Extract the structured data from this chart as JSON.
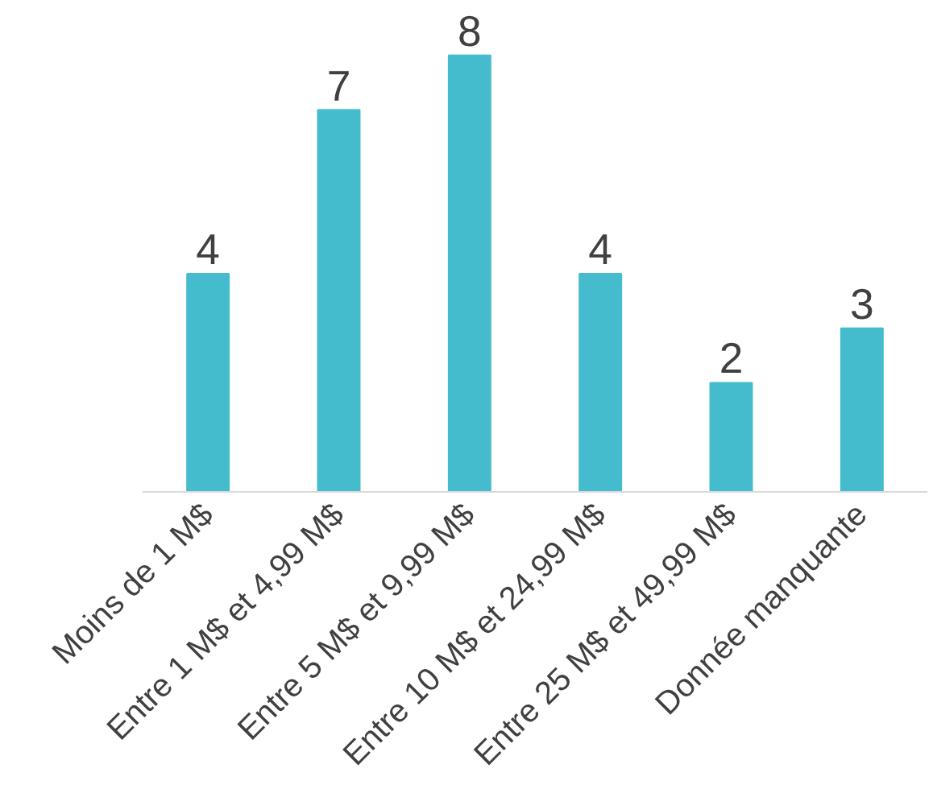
{
  "chart_data": {
    "type": "bar",
    "categories": [
      "Moins de 1 M$",
      "Entre 1 M$ et 4,99 M$",
      "Entre 5 M$ et 9,99 M$",
      "Entre 10 M$ et 24,99 M$",
      "Entre 25 M$ et 49,99 M$",
      "Donnée manquante"
    ],
    "values": [
      4,
      7,
      8,
      4,
      2,
      3
    ],
    "color": "#45bccd",
    "data_labels": true,
    "tick_labels": "x",
    "grid": false
  }
}
